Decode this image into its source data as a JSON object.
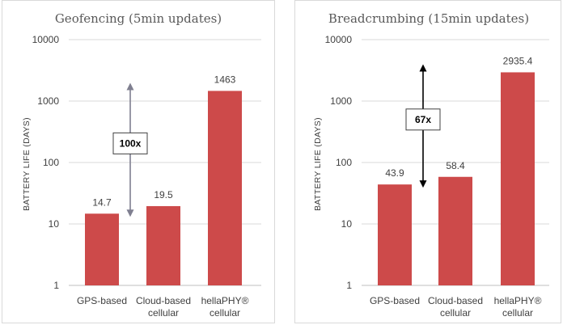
{
  "chart_data": [
    {
      "type": "bar",
      "title": "Geofencing (5min updates)",
      "ylabel": "BATTERY LIFE (DAYS)",
      "yscale": "log",
      "ylim": [
        1,
        10000
      ],
      "yticks": [
        "1",
        "10",
        "100",
        "1000",
        "10000"
      ],
      "categories": [
        [
          "GPS-based"
        ],
        [
          "Cloud-based",
          "cellular"
        ],
        [
          "hellaPHY®",
          "cellular"
        ]
      ],
      "values": [
        14.7,
        19.5,
        1463
      ],
      "value_labels": [
        "14.7",
        "19.5",
        "1463"
      ],
      "bar_color": "#cd4a4a",
      "arrow_color": "#7f7f90",
      "annotation": {
        "text": "100x",
        "from": 14.7,
        "to": 1463
      },
      "grid": true
    },
    {
      "type": "bar",
      "title": "Breadcrumbing (15min updates)",
      "ylabel": "BATTERY LIFE (DAYS)",
      "yscale": "log",
      "ylim": [
        1,
        10000
      ],
      "yticks": [
        "1",
        "10",
        "100",
        "1000",
        "10000"
      ],
      "categories": [
        [
          "GPS-based"
        ],
        [
          "Cloud-based",
          "cellular"
        ],
        [
          "hellaPHY®",
          "cellular"
        ]
      ],
      "values": [
        43.9,
        58.4,
        2935.4
      ],
      "value_labels": [
        "43.9",
        "58.4",
        "2935.4"
      ],
      "bar_color": "#cd4a4a",
      "arrow_color": "#000000",
      "annotation": {
        "text": "67x",
        "from": 43.9,
        "to": 2935.4
      },
      "grid": true
    }
  ]
}
